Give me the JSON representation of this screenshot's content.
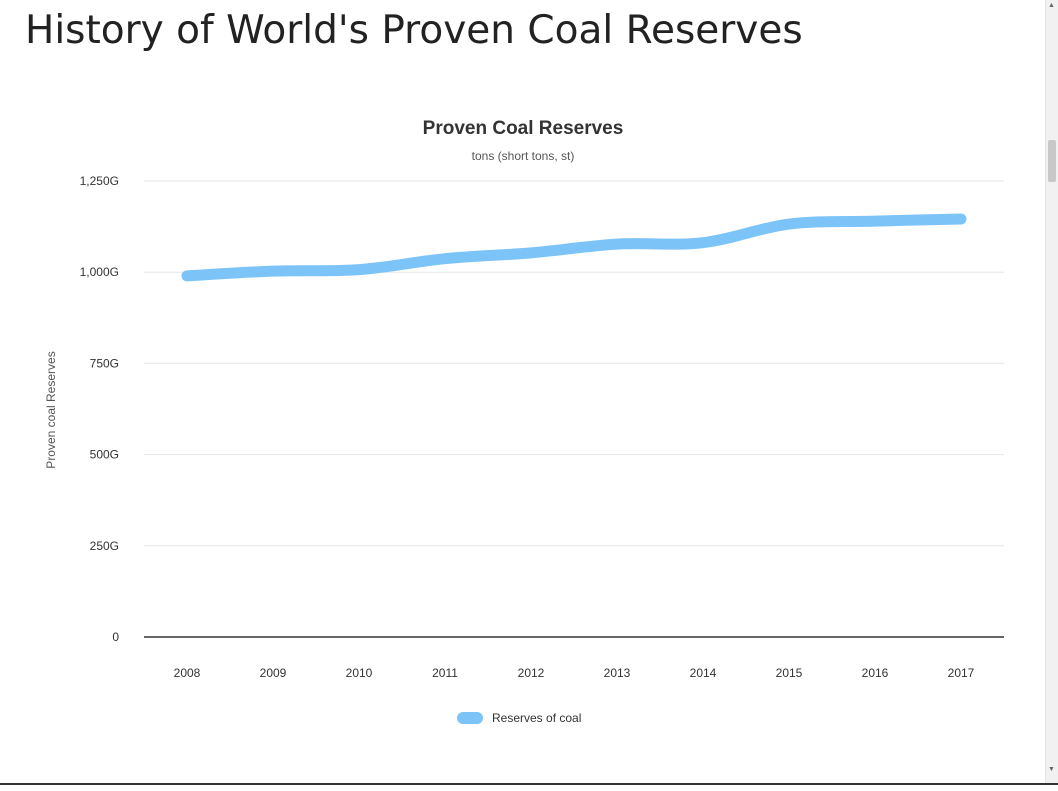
{
  "page": {
    "heading": "History of World's Proven Coal Reserves"
  },
  "colors": {
    "series": "#7cc4f8",
    "grid": "#e6e6e6",
    "baseline": "#333333"
  },
  "chart_data": {
    "type": "line",
    "title": "Proven Coal Reserves",
    "subtitle": "tons (short tons, st)",
    "ylabel": "Proven coal Reserves",
    "xlabel": "",
    "categories": [
      "2008",
      "2009",
      "2010",
      "2011",
      "2012",
      "2013",
      "2014",
      "2015",
      "2016",
      "2017"
    ],
    "series": [
      {
        "name": "Reserves of coal",
        "values": [
          990,
          1003,
          1007,
          1037,
          1053,
          1077,
          1081,
          1132,
          1140,
          1146
        ]
      }
    ],
    "y_ticks": [
      {
        "value": 0,
        "label": "0"
      },
      {
        "value": 250,
        "label": "250G"
      },
      {
        "value": 500,
        "label": "500G"
      },
      {
        "value": 750,
        "label": "750G"
      },
      {
        "value": 1000,
        "label": "1,000G"
      },
      {
        "value": 1250,
        "label": "1,250G"
      }
    ],
    "ylim": [
      0,
      1250
    ],
    "grid": true,
    "smooth": true,
    "legend_position": "bottom"
  }
}
